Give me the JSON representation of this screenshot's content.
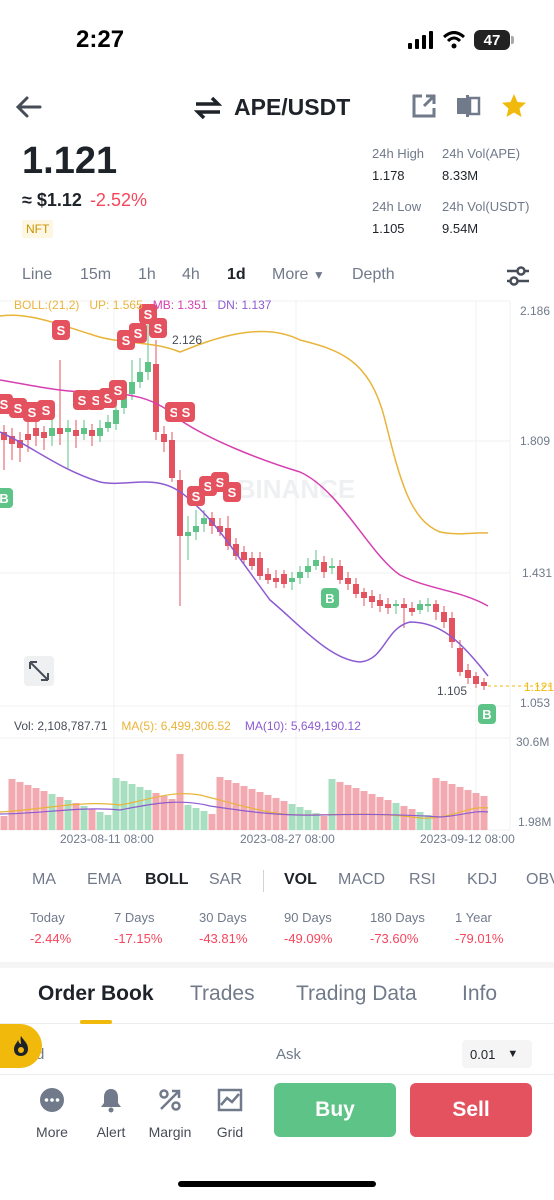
{
  "status": {
    "time": "2:27",
    "battery": "47"
  },
  "header": {
    "pair": "APE/USDT"
  },
  "price": {
    "last": "1.121",
    "usd": "≈ $1.12",
    "change": "-2.52%",
    "tag": "NFT"
  },
  "stats": {
    "high_label": "24h High",
    "high": "1.178",
    "vol_base_label": "24h Vol(APE)",
    "vol_base": "8.33M",
    "low_label": "24h Low",
    "low": "1.105",
    "vol_quote_label": "24h Vol(USDT)",
    "vol_quote": "9.54M"
  },
  "timeframes": [
    "Line",
    "15m",
    "1h",
    "4h",
    "1d",
    "More",
    "Depth"
  ],
  "active_timeframe": "1d",
  "indicator_legend": {
    "boll": "BOLL:(21,2)",
    "up": "UP: 1.565",
    "mb": "MB: 1.351",
    "dn": "DN: 1.137"
  },
  "price_axis": [
    "2.186",
    "1.809",
    "1.431",
    "1.121",
    "1.053"
  ],
  "chart_labels": {
    "high_marker": "2.126",
    "low_marker": "1.105",
    "watermark": "BINANCE"
  },
  "volume_legend": {
    "vol": "Vol: 2,108,787.71",
    "ma5": "MA(5): 6,499,306.52",
    "ma10": "MA(10): 5,649,190.12"
  },
  "volume_axis": [
    "30.6M",
    "1.98M"
  ],
  "date_axis": [
    "2023-08-11 08:00",
    "2023-08-27 08:00",
    "2023-09-12 08:00"
  ],
  "indicator_tabs": [
    "MA",
    "EMA",
    "BOLL",
    "SAR",
    "VOL",
    "MACD",
    "RSI",
    "KDJ",
    "OBV"
  ],
  "performance": [
    {
      "label": "Today",
      "value": "-2.44%"
    },
    {
      "label": "7 Days",
      "value": "-17.15%"
    },
    {
      "label": "30 Days",
      "value": "-43.81%"
    },
    {
      "label": "90 Days",
      "value": "-49.09%"
    },
    {
      "label": "180 Days",
      "value": "-73.60%"
    },
    {
      "label": "1 Year",
      "value": "-79.01%"
    }
  ],
  "book_tabs": [
    "Order Book",
    "Trades",
    "Trading Data",
    "Info"
  ],
  "order_book": {
    "bid": "d",
    "ask": "Ask",
    "step": "0.01"
  },
  "bottom_nav": [
    {
      "label": "More",
      "icon": "more-icon"
    },
    {
      "label": "Alert",
      "icon": "bell-icon"
    },
    {
      "label": "Margin",
      "icon": "margin-icon"
    },
    {
      "label": "Grid",
      "icon": "grid-icon"
    }
  ],
  "actions": {
    "buy": "Buy",
    "sell": "Sell"
  },
  "colors": {
    "up": "#5ec386",
    "down": "#e5525f",
    "boll_up": "#e8b43a",
    "boll_mb": "#d63fb0",
    "boll_dn": "#8d5bd1",
    "accent": "#f0b90b"
  },
  "chart_data": {
    "type": "candlestick",
    "markers": [
      {
        "label": "S"
      },
      {
        "label": "B"
      }
    ],
    "price_axis": [
      "2.186",
      "1.809",
      "1.431",
      "1.121",
      "1.053"
    ],
    "volume_axis": [
      "30.6M",
      "1.98M"
    ],
    "x_labels": [
      "2023-08-11 08:00",
      "2023-08-27 08:00",
      "2023-09-12 08:00"
    ],
    "legend": [
      "BOLL:(21,2)",
      "UP: 1.565",
      "MB: 1.351",
      "DN: 1.137"
    ]
  }
}
